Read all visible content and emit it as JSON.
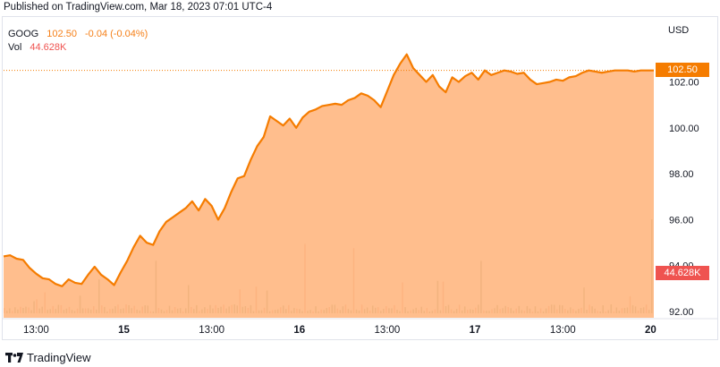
{
  "header": {
    "published": "Published on TradingView.com, Mar 18, 2023 07:01 UTC-4"
  },
  "legend": {
    "symbol": "GOOG",
    "last": "102.50",
    "change": "-0.04 (-0.04%)",
    "vol_label": "Vol",
    "vol_value": "44.628K"
  },
  "axis": {
    "currency": "USD"
  },
  "price_tag": "102.50",
  "vol_tag": "44.628K",
  "footer": {
    "brand": "TradingView"
  },
  "colors": {
    "line": "#f57c00",
    "area": "#ffb074",
    "volume": "#a8b89a",
    "volume_alt": "#f2b8a8"
  },
  "chart_data": {
    "type": "area",
    "symbol": "GOOG",
    "currency": "USD",
    "last_price": 102.5,
    "ylim": [
      91.9,
      103.6
    ],
    "yticks": [
      92.0,
      94.0,
      96.0,
      98.0,
      100.0,
      102.0
    ],
    "ytick_labels": [
      "92.00",
      "94.00",
      "96.00",
      "98.00",
      "100.00",
      "102.00"
    ],
    "xtick_labels": [
      {
        "label": "13:00",
        "x": 10
      },
      {
        "label": "15",
        "x": 37
      },
      {
        "label": "13:00",
        "x": 64
      },
      {
        "label": "16",
        "x": 91
      },
      {
        "label": "13:00",
        "x": 118
      },
      {
        "label": "17",
        "x": 145
      },
      {
        "label": "13:00",
        "x": 172
      },
      {
        "label": "20",
        "x": 199
      }
    ],
    "x": [
      0,
      2,
      4,
      6,
      8,
      10,
      12,
      14,
      16,
      18,
      20,
      22,
      24,
      26,
      28,
      30,
      32,
      34,
      36,
      38,
      40,
      42,
      44,
      46,
      48,
      50,
      52,
      54,
      56,
      58,
      60,
      62,
      64,
      66,
      68,
      70,
      72,
      74,
      76,
      78,
      80,
      82,
      84,
      86,
      88,
      90,
      92,
      94,
      96,
      98,
      100,
      102,
      104,
      106,
      108,
      110,
      112,
      114,
      116,
      118,
      120,
      122,
      124,
      126,
      128,
      130,
      132,
      134,
      136,
      138,
      140,
      142,
      144,
      146,
      148,
      150,
      152,
      154,
      156,
      158,
      160,
      162,
      164,
      166,
      168,
      170,
      172,
      174,
      176,
      178,
      180,
      182,
      184,
      186,
      188,
      190,
      192,
      194,
      196,
      198,
      200
    ],
    "values": [
      94.4,
      94.45,
      94.3,
      94.25,
      93.9,
      93.65,
      93.45,
      93.4,
      93.2,
      93.1,
      93.4,
      93.25,
      93.2,
      93.6,
      93.95,
      93.6,
      93.4,
      93.15,
      93.7,
      94.2,
      94.8,
      95.3,
      95.0,
      94.9,
      95.5,
      95.9,
      96.1,
      96.3,
      96.5,
      96.8,
      96.4,
      96.9,
      96.6,
      96.0,
      96.5,
      97.2,
      97.8,
      97.9,
      98.6,
      99.2,
      99.6,
      100.5,
      100.3,
      100.1,
      100.4,
      100.0,
      100.45,
      100.7,
      100.8,
      100.95,
      101.0,
      101.05,
      101.0,
      101.2,
      101.3,
      101.5,
      101.4,
      101.2,
      100.9,
      101.6,
      102.3,
      102.8,
      103.2,
      102.6,
      102.3,
      102.0,
      102.3,
      101.8,
      101.55,
      102.2,
      102.0,
      102.25,
      102.4,
      102.1,
      102.5,
      102.3,
      102.4,
      102.5,
      102.45,
      102.35,
      102.4,
      102.1,
      101.9,
      101.95,
      102.0,
      102.1,
      102.05,
      102.2,
      102.25,
      102.4,
      102.5,
      102.45,
      102.4,
      102.45,
      102.5,
      102.5,
      102.5,
      102.45,
      102.5,
      102.5,
      102.5
    ],
    "volume_label": "Vol",
    "last_volume": "44.628K"
  }
}
